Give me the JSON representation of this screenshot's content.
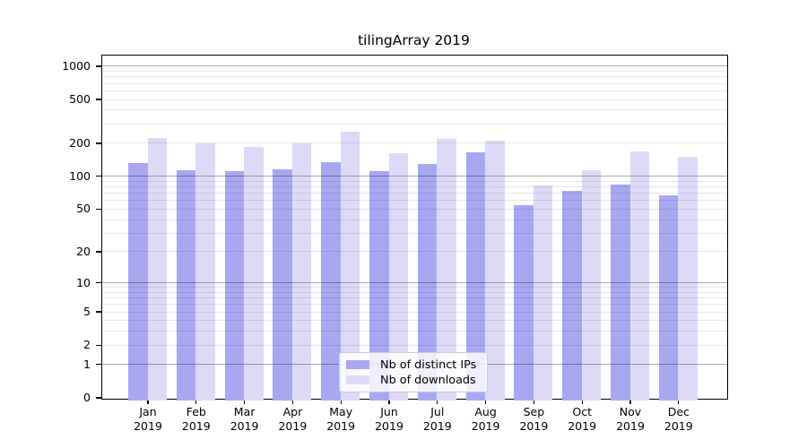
{
  "title": "tilingArray 2019",
  "chart_data": {
    "type": "bar",
    "title": "tilingArray 2019",
    "categories": [
      "Jan",
      "Feb",
      "Mar",
      "Apr",
      "May",
      "Jun",
      "Jul",
      "Aug",
      "Sep",
      "Oct",
      "Nov",
      "Dec"
    ],
    "category_year": "2019",
    "series": [
      {
        "name": "Nb of distinct IPs",
        "color": "#a8a8f1",
        "values": [
          133,
          114,
          112,
          117,
          137,
          112,
          130,
          166,
          55,
          75,
          85,
          68
        ]
      },
      {
        "name": "Nb of downloads",
        "color": "#dbdbf8",
        "values": [
          226,
          203,
          186,
          203,
          258,
          163,
          220,
          212,
          83,
          114,
          170,
          151
        ]
      }
    ],
    "y_axis": {
      "scale": "log1p",
      "tick_labels": [
        0,
        1,
        2,
        5,
        10,
        20,
        50,
        100,
        200,
        500,
        1000
      ],
      "major_gridlines": [
        1,
        10,
        100,
        1000
      ],
      "minor_gridlines": [
        2,
        3,
        4,
        5,
        6,
        7,
        8,
        9,
        20,
        30,
        40,
        50,
        60,
        70,
        80,
        90,
        200,
        300,
        400,
        500,
        600,
        700,
        800,
        900
      ],
      "ylim": [
        0,
        1250
      ]
    },
    "legend": {
      "position": "lower center inside",
      "entries": [
        "Nb of distinct IPs",
        "Nb of downloads"
      ]
    },
    "grid": "on",
    "xlabel": "",
    "ylabel": ""
  },
  "colors": {
    "distinct_ips": "#a8a8f1",
    "downloads": "#dbdbf8",
    "grid_major": "rgba(0,0,0,0.33)",
    "grid_minor": "rgba(0,0,0,0.09)",
    "spine": "#000000",
    "background": "#ffffff",
    "legend_border": "#cccccc"
  }
}
